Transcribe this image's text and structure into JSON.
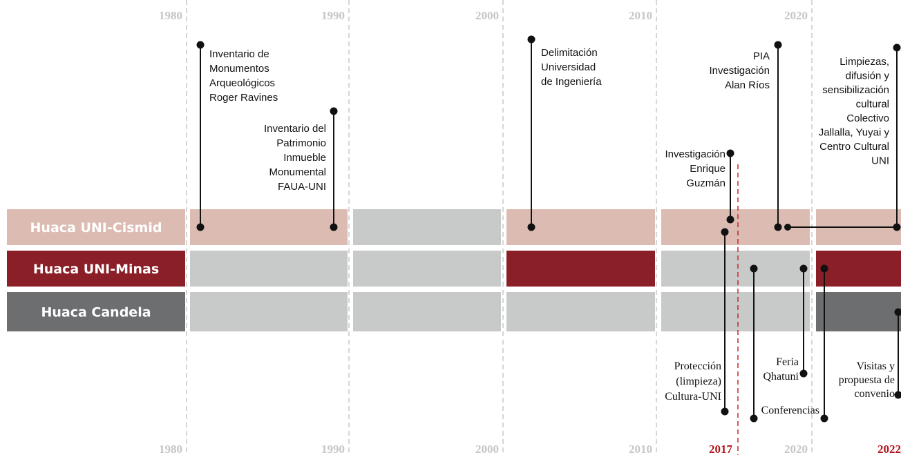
{
  "decades": [
    "1980",
    "1990",
    "2000",
    "2010",
    "2020"
  ],
  "highlight_years": [
    "2017",
    "2022"
  ],
  "rows": [
    {
      "label": "Huaca UNI-Cismid"
    },
    {
      "label": "Huaca UNI-Minas"
    },
    {
      "label": "Huaca Candela"
    }
  ],
  "events": [
    {
      "lines": [
        "Inventario de",
        "Monumentos",
        "Arqueológicos",
        "Roger Ravines"
      ]
    },
    {
      "lines": [
        "Inventario del",
        "Patrimonio",
        "Inmueble",
        "Monumental",
        "FAUA-UNI"
      ]
    },
    {
      "lines": [
        "Delimitación",
        "Universidad",
        "de Ingeniería"
      ]
    },
    {
      "lines": [
        "Investigación",
        "Enrique",
        "Guzmán"
      ]
    },
    {
      "lines": [
        "PIA",
        "Investigación",
        "Alan Ríos"
      ]
    },
    {
      "lines": [
        "Limpiezas,",
        "difusión y",
        "sensibilización",
        "cultural",
        "Colectivo",
        "Jallalla, Yuyai y",
        "Centro Cultural",
        "UNI"
      ]
    },
    {
      "lines": [
        "Protección",
        "(limpieza)",
        "Cultura-UNI"
      ]
    },
    {
      "lines": [
        "Feria",
        "Qhatuni"
      ]
    },
    {
      "lines": [
        "Conferencias"
      ]
    },
    {
      "lines": [
        "Visitas y",
        "propuesta de",
        "convenio"
      ]
    }
  ]
}
